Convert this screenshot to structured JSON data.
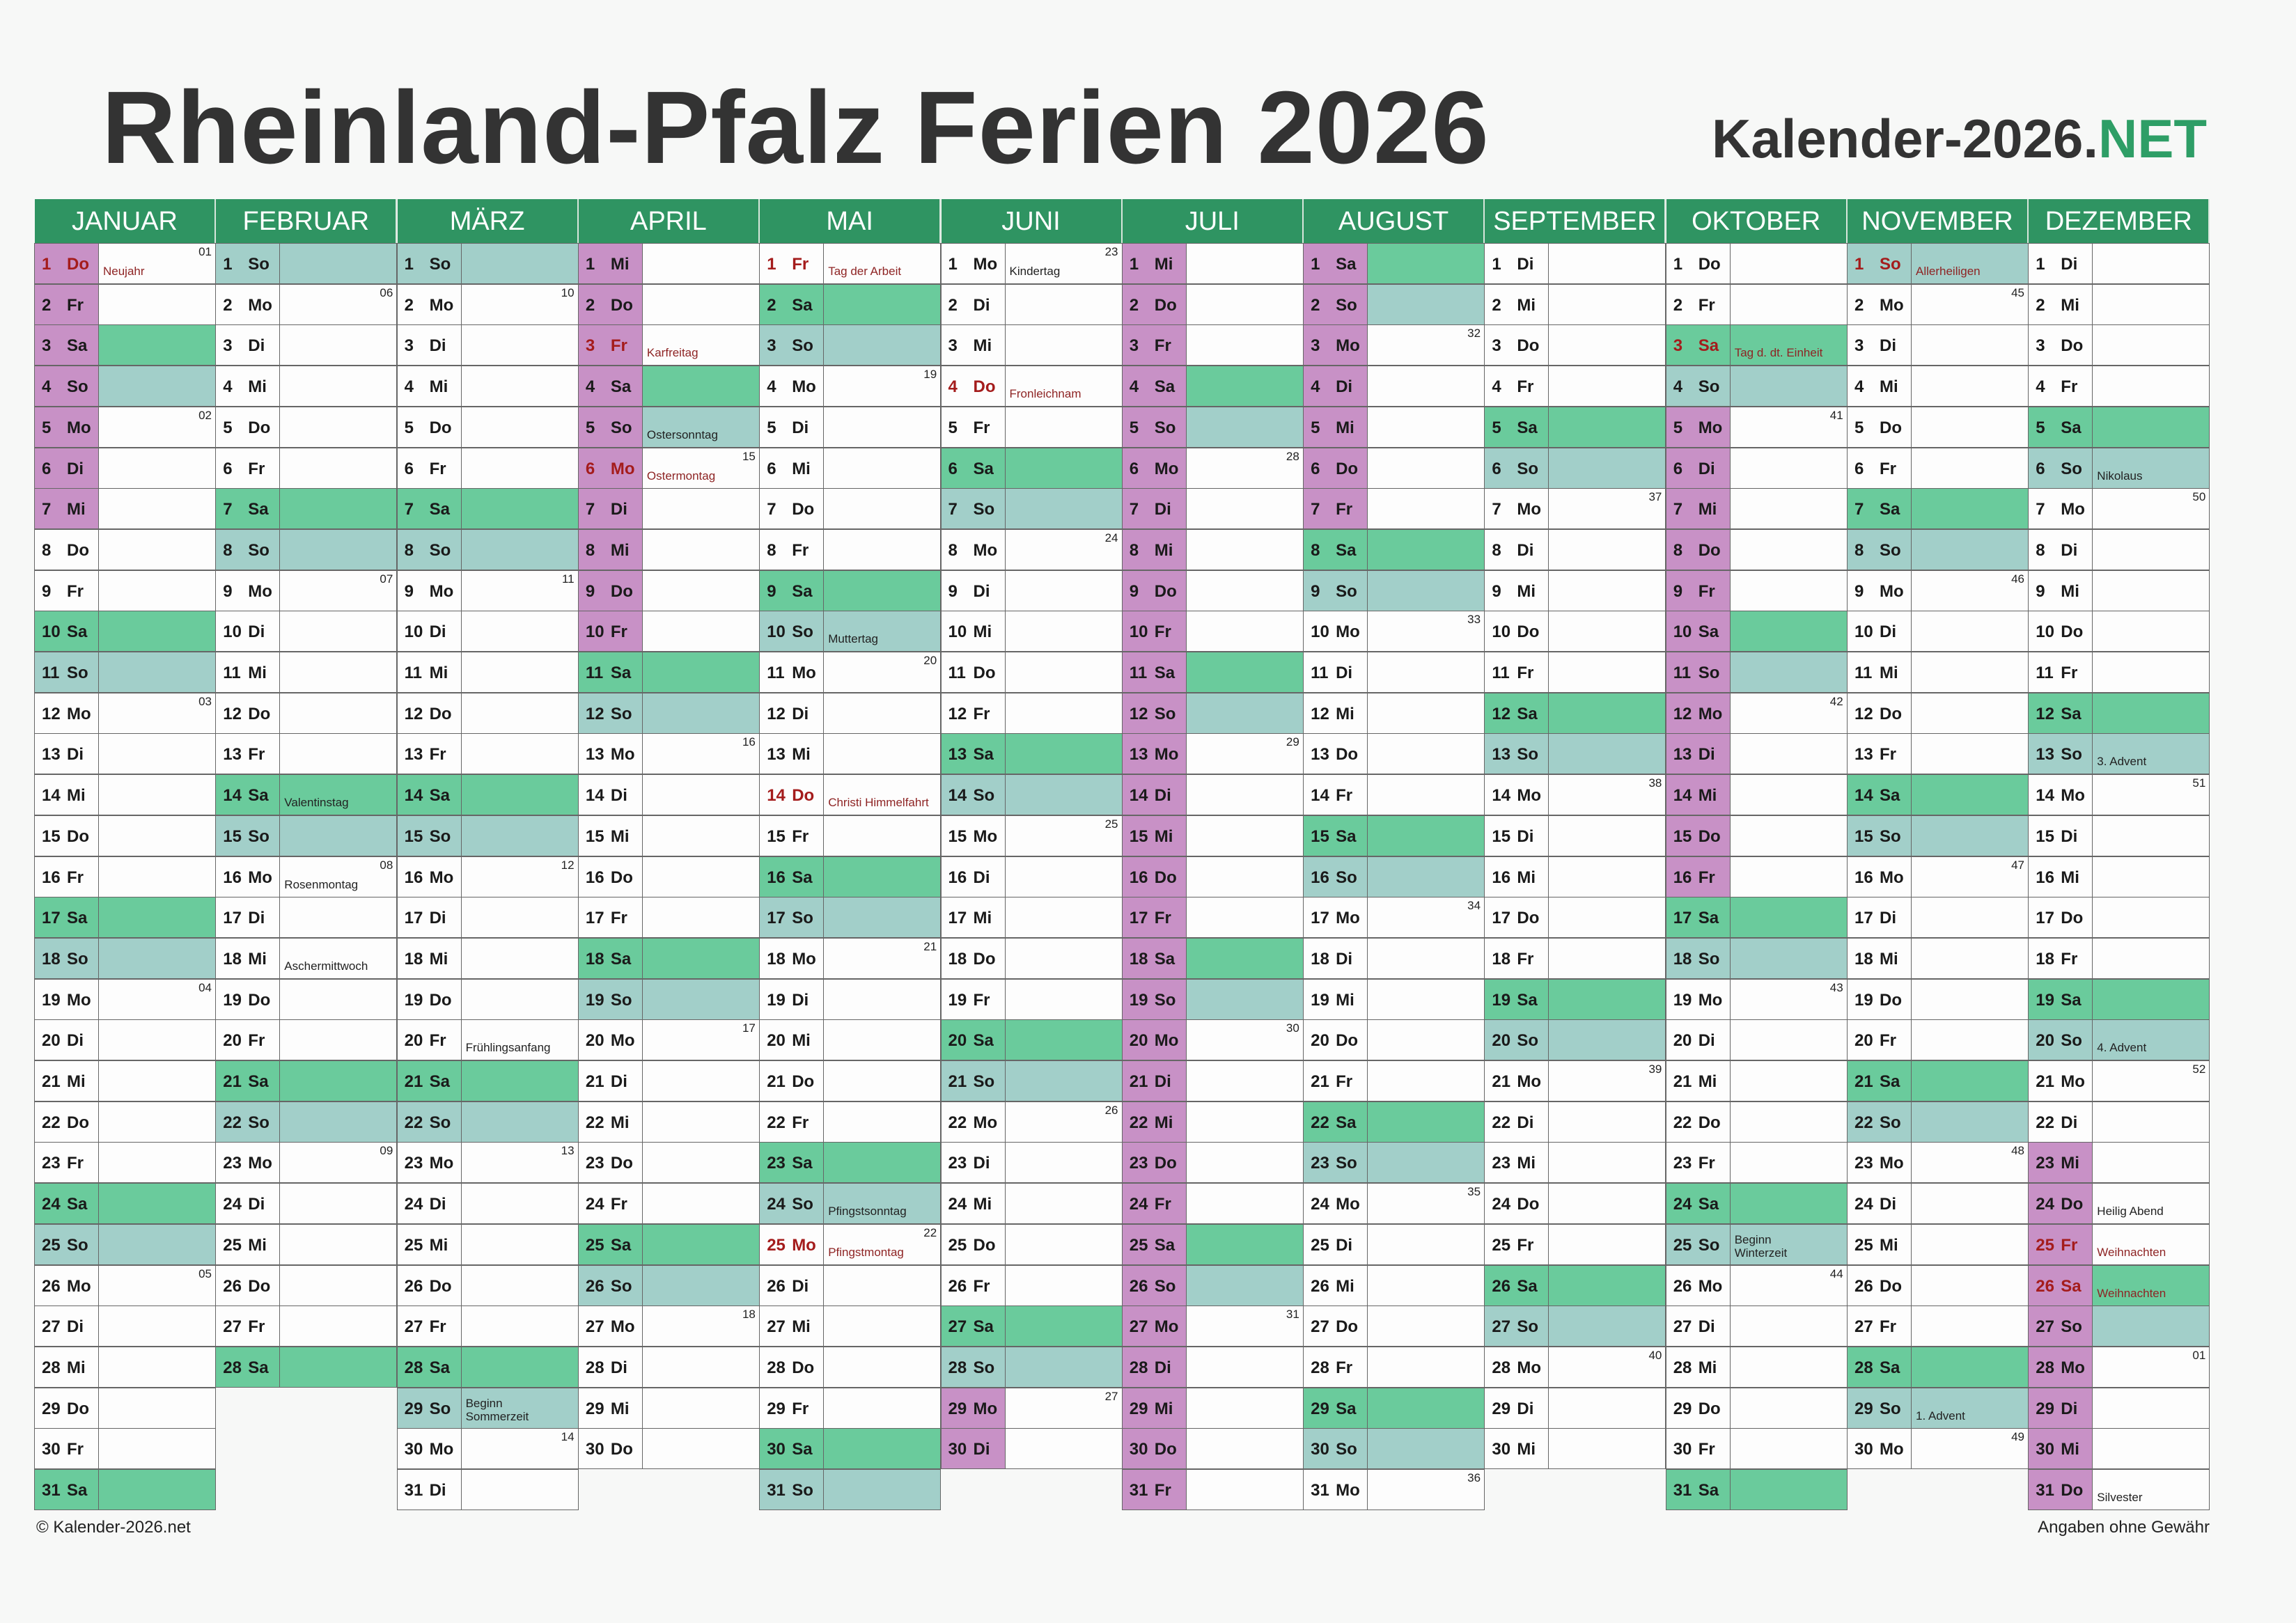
{
  "header": {
    "title": "Rheinland-Pfalz Ferien 2026",
    "brand_main": "Kalender-2026.",
    "brand_accent": "NET"
  },
  "footer": {
    "copyright": "© Kalender-2026.net",
    "disclaimer": "Angaben ohne Gewähr"
  },
  "colors": {
    "header_green": "#2f9462",
    "saturday": "#6acb9c",
    "sunday": "#a2cfc9",
    "school_holiday": "#c891c6",
    "public_holiday_text": "#a41c1c"
  },
  "weekday_abbr": [
    "Mo",
    "Di",
    "Mi",
    "Do",
    "Fr",
    "Sa",
    "So"
  ],
  "months": [
    {
      "name": "JANUAR",
      "days": 31,
      "start": 3
    },
    {
      "name": "FEBRUAR",
      "days": 28,
      "start": 6
    },
    {
      "name": "MÄRZ",
      "days": 31,
      "start": 6
    },
    {
      "name": "APRIL",
      "days": 30,
      "start": 2
    },
    {
      "name": "MAI",
      "days": 31,
      "start": 4
    },
    {
      "name": "JUNI",
      "days": 30,
      "start": 0
    },
    {
      "name": "JULI",
      "days": 31,
      "start": 2
    },
    {
      "name": "AUGUST",
      "days": 31,
      "start": 5
    },
    {
      "name": "SEPTEMBER",
      "days": 30,
      "start": 1
    },
    {
      "name": "OKTOBER",
      "days": 31,
      "start": 3
    },
    {
      "name": "NOVEMBER",
      "days": 30,
      "start": 6
    },
    {
      "name": "DEZEMBER",
      "days": 31,
      "start": 1
    }
  ],
  "week_numbers": {
    "0": {
      "1": "01",
      "5": "02",
      "12": "03",
      "19": "04",
      "26": "05"
    },
    "1": {
      "2": "06",
      "9": "07",
      "16": "08",
      "23": "09"
    },
    "2": {
      "2": "10",
      "9": "11",
      "16": "12",
      "23": "13",
      "30": "14"
    },
    "3": {
      "6": "15",
      "13": "16",
      "20": "17",
      "27": "18"
    },
    "4": {
      "4": "19",
      "11": "20",
      "18": "21",
      "25": "22"
    },
    "5": {
      "1": "23",
      "8": "24",
      "15": "25",
      "22": "26",
      "29": "27"
    },
    "6": {
      "6": "28",
      "13": "29",
      "20": "30",
      "27": "31"
    },
    "7": {
      "3": "32",
      "10": "33",
      "17": "34",
      "24": "35",
      "31": "36"
    },
    "8": {
      "7": "37",
      "14": "38",
      "21": "39",
      "28": "40"
    },
    "9": {
      "5": "41",
      "12": "42",
      "19": "43",
      "26": "44"
    },
    "10": {
      "2": "45",
      "9": "46",
      "16": "47",
      "23": "48",
      "30": "49"
    },
    "11": {
      "7": "50",
      "14": "51",
      "21": "52",
      "28": "01"
    }
  },
  "notes": {
    "0": {
      "1": {
        "text": "Neujahr",
        "holiday": true
      }
    },
    "1": {
      "14": {
        "text": "Valentinstag"
      },
      "16": {
        "text": "Rosenmontag"
      },
      "18": {
        "text": "Aschermittwoch"
      }
    },
    "2": {
      "20": {
        "text": "Frühlingsanfang"
      },
      "29": {
        "text": "Beginn\nSommerzeit"
      }
    },
    "3": {
      "3": {
        "text": "Karfreitag",
        "holiday": true
      },
      "5": {
        "text": "Ostersonntag"
      },
      "6": {
        "text": "Ostermontag",
        "holiday": true
      }
    },
    "4": {
      "1": {
        "text": "Tag der Arbeit",
        "holiday": true
      },
      "10": {
        "text": "Muttertag"
      },
      "14": {
        "text": "Christi Himmelfahrt",
        "holiday": true
      },
      "24": {
        "text": "Pfingstsonntag"
      },
      "25": {
        "text": "Pfingstmontag",
        "holiday": true
      }
    },
    "5": {
      "1": {
        "text": "Kindertag"
      },
      "4": {
        "text": "Fronleichnam",
        "holiday": true
      }
    },
    "8": {},
    "9": {
      "3": {
        "text": "Tag d. dt. Einheit",
        "holiday": true
      },
      "25": {
        "text": "Beginn\nWinterzeit"
      }
    },
    "10": {
      "1": {
        "text": "Allerheiligen",
        "holiday": true
      },
      "29": {
        "text": "1. Advent"
      }
    },
    "11": {
      "6": {
        "text": "Nikolaus"
      },
      "13": {
        "text": "3. Advent"
      },
      "20": {
        "text": "4. Advent"
      },
      "24": {
        "text": "Heilig Abend"
      },
      "25": {
        "text": "Weihnachten",
        "holiday": true
      },
      "26": {
        "text": "Weihnachten",
        "holiday": true
      },
      "31": {
        "text": "Silvester"
      }
    }
  },
  "school_holidays": {
    "0": [
      1,
      2,
      3,
      4,
      5,
      6,
      7
    ],
    "3": [
      1,
      2,
      3,
      4,
      5,
      6,
      7,
      8,
      9,
      10
    ],
    "5": [
      29,
      30
    ],
    "6": [
      1,
      2,
      3,
      4,
      5,
      6,
      7,
      8,
      9,
      10,
      11,
      12,
      13,
      14,
      15,
      16,
      17,
      18,
      19,
      20,
      21,
      22,
      23,
      24,
      25,
      26,
      27,
      28,
      29,
      30,
      31
    ],
    "7": [
      1,
      2,
      3,
      4,
      5,
      6,
      7
    ],
    "9": [
      5,
      6,
      7,
      8,
      9,
      10,
      11,
      12,
      13,
      14,
      15,
      16
    ],
    "11": [
      23,
      24,
      25,
      26,
      27,
      28,
      29,
      30,
      31
    ]
  }
}
